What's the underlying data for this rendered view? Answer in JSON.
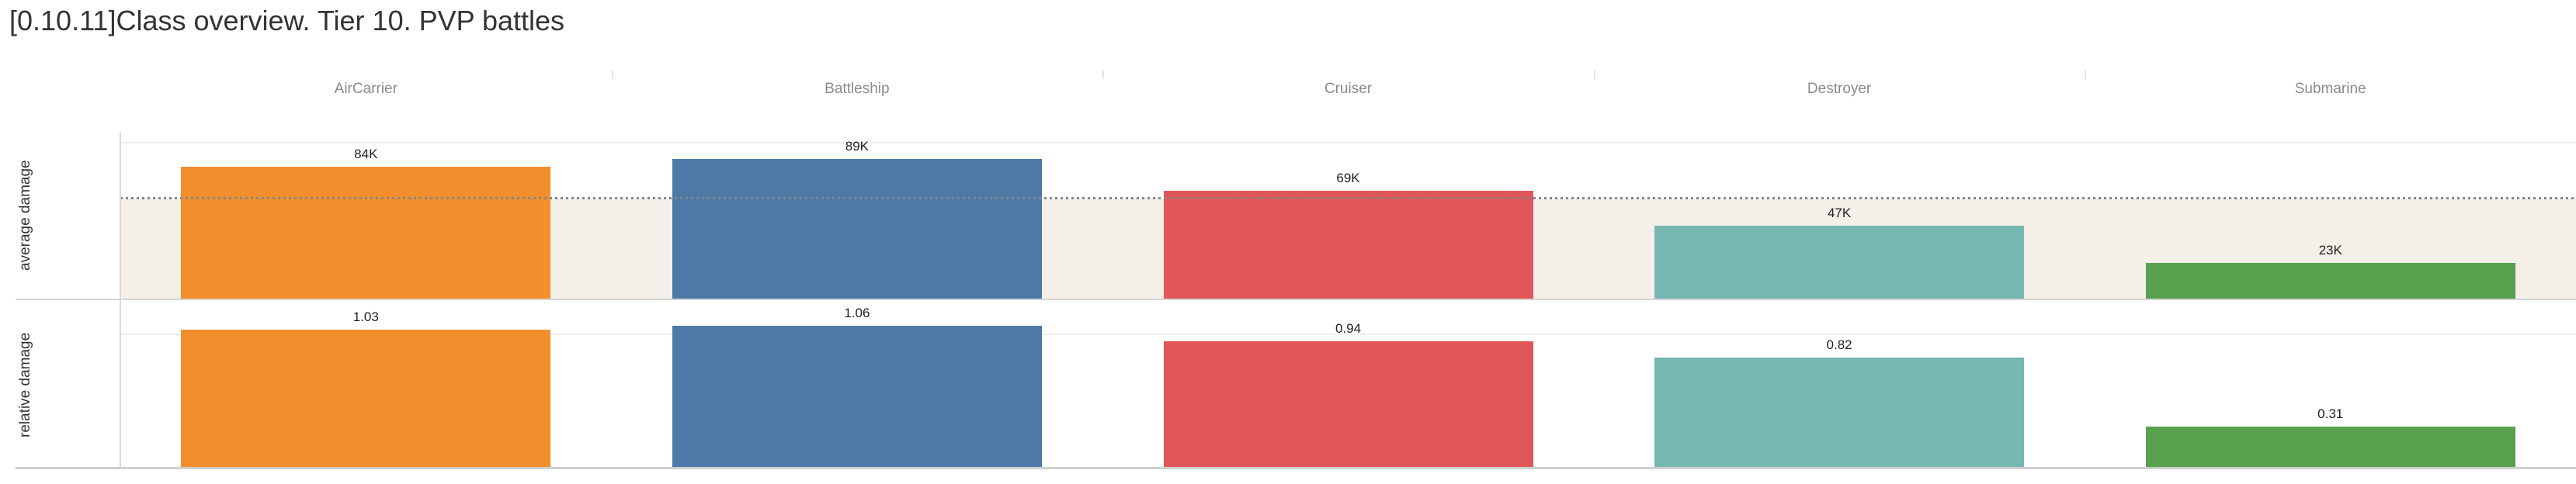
{
  "title": "[0.10.11]Class overview. Tier 10. PVP battles",
  "chart_data": {
    "type": "bar",
    "categories": [
      "AirCarrier",
      "Battleship",
      "Cruiser",
      "Destroyer",
      "Submarine"
    ],
    "series_colors": {
      "AirCarrier": "#f28e2b",
      "Battleship": "#4e79a7",
      "Cruiser": "#e15759",
      "Destroyer": "#76b7b2",
      "Submarine": "#59a14f"
    },
    "rows": [
      {
        "label": "average damage",
        "unit": "K",
        "values": [
          84,
          89,
          69,
          47,
          23
        ],
        "display_labels": [
          "84K",
          "89K",
          "69K",
          "47K",
          "23K"
        ],
        "ylim": [
          0,
          106
        ],
        "gridline_value": 100,
        "reference_line_value": 64,
        "reference_band": [
          0,
          64
        ],
        "reference_band_color": "#f4efe9",
        "reference_line_color": "#868686",
        "reference_line_style": "dotted"
      },
      {
        "label": "relative damage",
        "values": [
          1.03,
          1.06,
          0.94,
          0.82,
          0.31
        ],
        "display_labels": [
          "1.03",
          "1.06",
          "0.94",
          "0.82",
          "0.31"
        ],
        "ylim": [
          0,
          1.25
        ],
        "gridline_value": 1.0
      }
    ],
    "grid": "horizontal-faint",
    "legend_position": "none",
    "title": "[0.10.11]Class overview. Tier 10. PVP battles"
  }
}
